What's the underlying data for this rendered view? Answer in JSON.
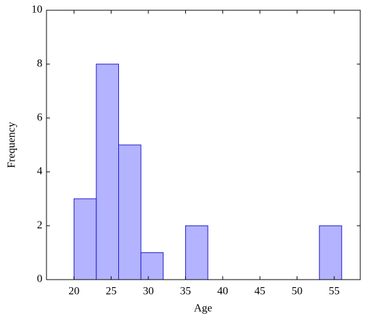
{
  "chart_data": {
    "type": "histogram",
    "xlabel": "Age",
    "ylabel": "Frequency",
    "bins": [
      20,
      23,
      26,
      29,
      32,
      35,
      38,
      41,
      44,
      47,
      50,
      53,
      56
    ],
    "values": [
      3,
      8,
      5,
      1,
      0,
      2,
      0,
      0,
      0,
      0,
      0,
      2
    ],
    "color": "#b3b3ff",
    "edgecolor": "#1a1acc",
    "xlim": [
      16.3,
      58.5
    ],
    "ylim": [
      0,
      10
    ],
    "xticks": [
      20,
      25,
      30,
      35,
      40,
      45,
      50,
      55
    ],
    "yticks": [
      0,
      2,
      4,
      6,
      8,
      10
    ]
  }
}
